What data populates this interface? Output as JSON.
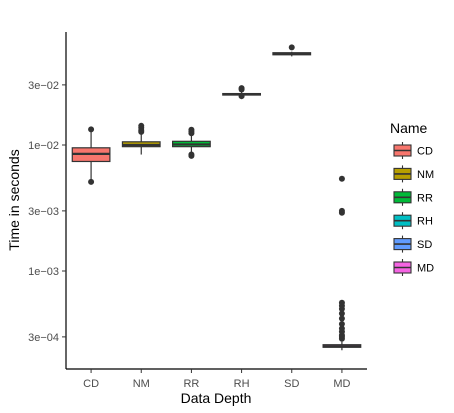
{
  "chart_data": {
    "type": "boxplot",
    "xlabel": "Data Depth",
    "ylabel": "Time in seconds",
    "y_scale": "log10",
    "ylim": [
      0.00018,
      0.085
    ],
    "grid": false,
    "legend_position": "right",
    "legend_title": "Name",
    "y_ticks": [
      {
        "value": 0.0003,
        "label": "3e−04"
      },
      {
        "value": 0.001,
        "label": "1e−03"
      },
      {
        "value": 0.003,
        "label": "3e−03"
      },
      {
        "value": 0.01,
        "label": "1e−02"
      },
      {
        "value": 0.03,
        "label": "3e−02"
      }
    ],
    "categories": [
      "CD",
      "NM",
      "RR",
      "RH",
      "SD",
      "MD"
    ],
    "series": [
      {
        "name": "CD",
        "color": "#F8766D",
        "whisker_low": 0.0052,
        "q1": 0.0074,
        "median": 0.0085,
        "q3": 0.0095,
        "whisker_high": 0.0128,
        "outliers": [
          0.0051,
          0.0133
        ]
      },
      {
        "name": "NM",
        "color": "#B79F00",
        "whisker_low": 0.0084,
        "q1": 0.0097,
        "median": 0.01,
        "q3": 0.0106,
        "whisker_high": 0.0123,
        "outliers": [
          0.0127,
          0.0131,
          0.0137,
          0.0142
        ]
      },
      {
        "name": "RR",
        "color": "#00BA38",
        "whisker_low": 0.0087,
        "q1": 0.0097,
        "median": 0.0101,
        "q3": 0.0107,
        "whisker_high": 0.0121,
        "outliers": [
          0.0082,
          0.0084,
          0.0124,
          0.0128,
          0.0132
        ]
      },
      {
        "name": "RH",
        "color": "#00BFC4",
        "whisker_low": 0.024,
        "q1": 0.025,
        "median": 0.0253,
        "q3": 0.0256,
        "whisker_high": 0.0265,
        "outliers": [
          0.0244,
          0.0276,
          0.0283
        ]
      },
      {
        "name": "SD",
        "color": "#619CFF",
        "whisker_low": 0.0505,
        "q1": 0.052,
        "median": 0.053,
        "q3": 0.054,
        "whisker_high": 0.055,
        "outliers": [
          0.0595
        ]
      },
      {
        "name": "MD",
        "color": "#F564E3",
        "whisker_low": 0.000235,
        "q1": 0.000248,
        "median": 0.000253,
        "q3": 0.00026,
        "whisker_high": 0.000275,
        "outliers": [
          0.00029,
          0.0003,
          0.00031,
          0.00033,
          0.00035,
          0.00038,
          0.00042,
          0.00046,
          0.0005,
          0.00053,
          0.00056,
          0.0029,
          0.003,
          0.0054
        ]
      }
    ]
  }
}
